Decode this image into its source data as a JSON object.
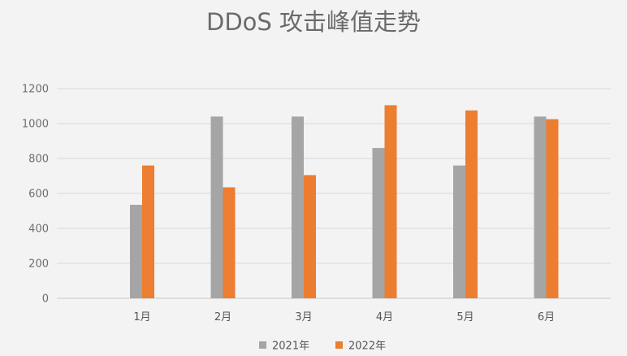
{
  "chart_data": {
    "type": "bar",
    "title": "DDoS 攻击峰值走势",
    "xlabel": "",
    "ylabel": "",
    "categories": [
      "1月",
      "2月",
      "3月",
      "4月",
      "5月",
      "6月"
    ],
    "series": [
      {
        "name": "2021年",
        "color": "#a5a5a5",
        "values": [
          535,
          1040,
          1040,
          860,
          760,
          1040
        ]
      },
      {
        "name": "2022年",
        "color": "#ed7d31",
        "values": [
          760,
          635,
          705,
          1105,
          1075,
          1025
        ]
      }
    ],
    "ylim": [
      0,
      1200
    ],
    "yticks": [
      0,
      200,
      400,
      600,
      800,
      1000,
      1200
    ],
    "grid": true,
    "legend": "bottom"
  }
}
